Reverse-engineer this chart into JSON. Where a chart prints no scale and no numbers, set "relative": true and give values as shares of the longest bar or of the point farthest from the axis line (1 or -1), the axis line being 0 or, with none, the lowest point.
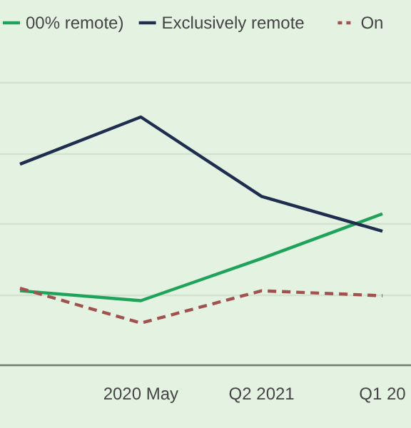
{
  "chart_data": {
    "type": "line",
    "relative": true,
    "categories": [
      null,
      "2020 May",
      "Q2 2021",
      "Q1 20"
    ],
    "series": [
      {
        "name": "00% remote)",
        "color": "#1fa35a",
        "values": [
          0.3,
          0.26,
          0.43,
          0.61
        ]
      },
      {
        "name": "Exclusively remote",
        "color": "#1f2d4f",
        "values": [
          0.81,
          1,
          0.68,
          0.54
        ]
      },
      {
        "name": "On",
        "color": "#a0524f",
        "values": [
          0.31,
          0.17,
          0.3,
          0.28
        ],
        "line_style": "dashed"
      }
    ],
    "grid": "y",
    "legend": "top"
  }
}
